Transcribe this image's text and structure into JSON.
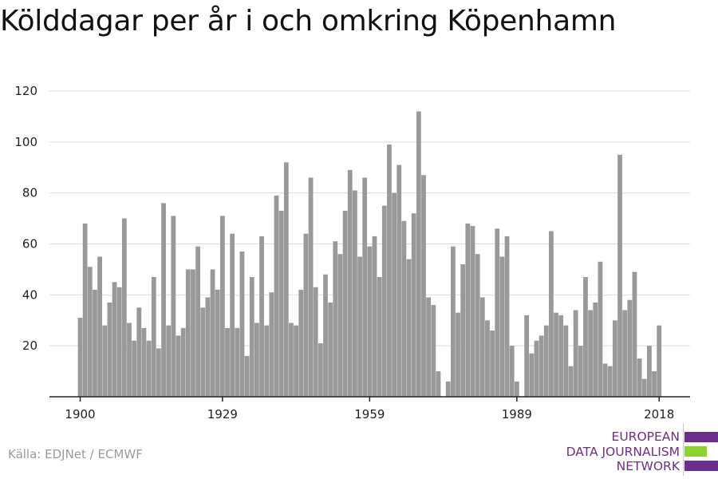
{
  "title": "Kölddagar per år i och omkring Köpenhamn",
  "source": "Källa: EDJNet / ECMWF",
  "logo": {
    "lines": [
      "EUROPEAN",
      "DATA JOURNALISM",
      "NETWORK"
    ],
    "colors": {
      "purple": "#6a2f8c",
      "green": "#8fd12e"
    }
  },
  "colors": {
    "bar": "#999999",
    "grid": "#dddddd",
    "axis": "#222222",
    "text": "#222222"
  },
  "chart_data": {
    "type": "bar",
    "x": [
      1900,
      1901,
      1902,
      1903,
      1904,
      1905,
      1906,
      1907,
      1908,
      1909,
      1910,
      1911,
      1912,
      1913,
      1914,
      1915,
      1916,
      1917,
      1918,
      1919,
      1920,
      1921,
      1922,
      1923,
      1924,
      1925,
      1926,
      1927,
      1928,
      1929,
      1930,
      1931,
      1932,
      1933,
      1934,
      1935,
      1936,
      1937,
      1938,
      1939,
      1940,
      1941,
      1942,
      1943,
      1944,
      1945,
      1946,
      1947,
      1948,
      1949,
      1950,
      1951,
      1952,
      1953,
      1954,
      1955,
      1956,
      1957,
      1958,
      1959,
      1960,
      1961,
      1962,
      1963,
      1964,
      1965,
      1966,
      1967,
      1968,
      1969,
      1970,
      1971,
      1972,
      1973,
      1974,
      1975,
      1976,
      1977,
      1978,
      1979,
      1980,
      1981,
      1982,
      1983,
      1984,
      1985,
      1986,
      1987,
      1988,
      1989,
      1990,
      1991,
      1992,
      1993,
      1994,
      1995,
      1996,
      1997,
      1998,
      1999,
      2000,
      2001,
      2002,
      2003,
      2004,
      2005,
      2006,
      2007,
      2008,
      2009,
      2010,
      2011,
      2012,
      2013,
      2014,
      2015,
      2016,
      2017,
      2018
    ],
    "values": [
      31,
      68,
      51,
      42,
      55,
      28,
      37,
      45,
      43,
      70,
      29,
      22,
      35,
      27,
      22,
      47,
      19,
      76,
      28,
      71,
      24,
      27,
      50,
      50,
      59,
      35,
      39,
      50,
      42,
      71,
      27,
      64,
      27,
      57,
      16,
      47,
      29,
      63,
      28,
      41,
      79,
      73,
      92,
      29,
      28,
      42,
      64,
      86,
      43,
      21,
      48,
      37,
      61,
      56,
      73,
      89,
      81,
      55,
      86,
      59,
      63,
      47,
      75,
      99,
      80,
      91,
      69,
      54,
      72,
      112,
      87,
      39,
      36,
      10,
      0,
      6,
      59,
      33,
      52,
      68,
      67,
      56,
      39,
      30,
      26,
      66,
      55,
      63,
      20,
      6,
      0,
      32,
      17,
      22,
      24,
      28,
      65,
      33,
      32,
      28,
      12,
      34,
      20,
      47,
      34,
      37,
      53,
      13,
      12,
      30,
      95,
      34,
      38,
      49,
      15,
      7,
      20,
      10,
      28
    ],
    "tick_labels": [
      "1900",
      "1929",
      "1959",
      "1989",
      "2018"
    ],
    "ylim": [
      0,
      120
    ],
    "yticks": [
      20,
      40,
      60,
      80,
      100,
      120
    ],
    "grid": true,
    "xlabel": "",
    "ylabel": ""
  }
}
